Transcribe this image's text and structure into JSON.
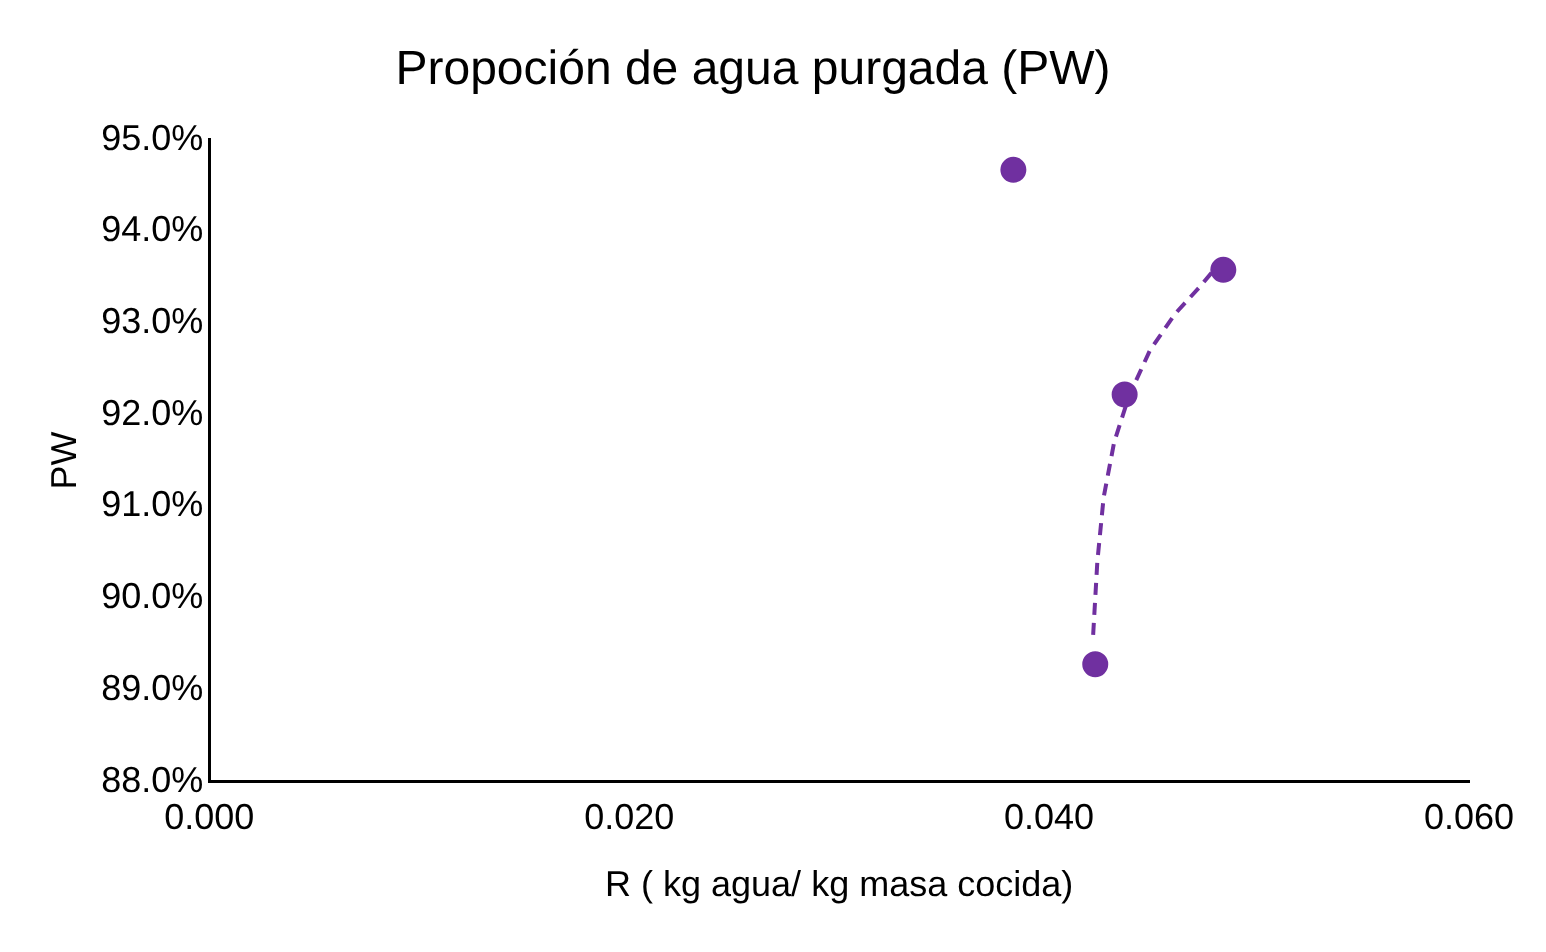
{
  "chart_data": {
    "type": "scatter",
    "title": "Propoción de agua purgada (PW)",
    "xlabel": "R ( kg agua/ kg masa cocida)",
    "ylabel": "PW",
    "xlim": [
      0,
      0.06
    ],
    "xticks": [
      {
        "value": 0,
        "label": "0.000"
      },
      {
        "value": 0.02,
        "label": "0.020"
      },
      {
        "value": 0.04,
        "label": "0.040"
      },
      {
        "value": 0.06,
        "label": "0.060"
      }
    ],
    "ylim": [
      88,
      95
    ],
    "yticks": [
      {
        "value": 88,
        "label": "88.0%"
      },
      {
        "value": 89,
        "label": "89.0%"
      },
      {
        "value": 90,
        "label": "90.0%"
      },
      {
        "value": 91,
        "label": "91.0%"
      },
      {
        "value": 92,
        "label": "92.0%"
      },
      {
        "value": 93,
        "label": "93.0%"
      },
      {
        "value": 94,
        "label": "94.0%"
      },
      {
        "value": 95,
        "label": "95.0%"
      }
    ],
    "grid": false,
    "legend": false,
    "series": [
      {
        "type": "scatter",
        "color": "#7030a0",
        "marker": "circle",
        "x": [
          0.0383,
          0.0483,
          0.0436,
          0.0422
        ],
        "values": [
          94.67,
          93.58,
          92.22,
          89.28
        ]
      },
      {
        "type": "line",
        "color": "#7030a0",
        "marker": "none",
        "line_style": "dashed",
        "x": [
          0.0421,
          0.0423,
          0.0426,
          0.0431,
          0.0438,
          0.0448,
          0.046,
          0.0472,
          0.0483
        ],
        "values": [
          89.6,
          90.4,
          91.1,
          91.7,
          92.2,
          92.7,
          93.1,
          93.4,
          93.7
        ]
      }
    ]
  }
}
